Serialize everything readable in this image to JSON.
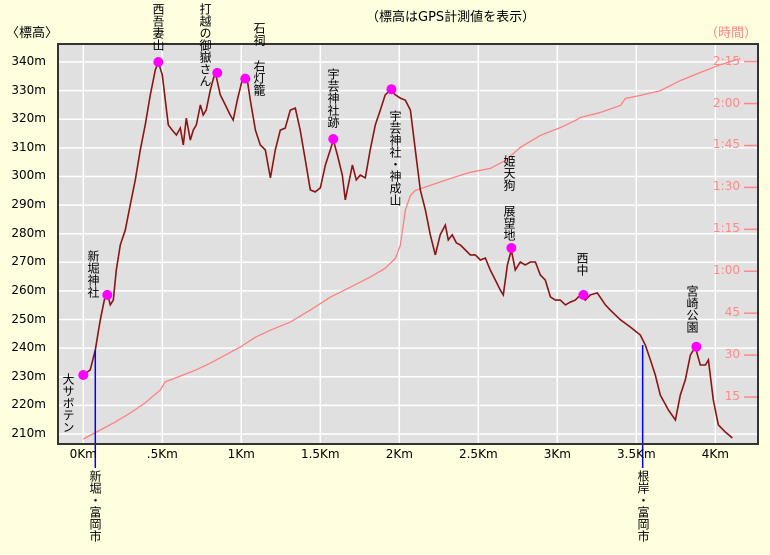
{
  "chart_data": {
    "type": "line",
    "title": "（標高はGPS計測値を表示）",
    "ylabel": "〈標高〉",
    "y2label": "（時間）",
    "xlim": [
      -0.16,
      4.27
    ],
    "ylim": [
      206.5,
      346.3
    ],
    "y2lim_minutes": [
      -1.8,
      141.3
    ],
    "grid": true,
    "x_ticks": [
      "0Km",
      ".5Km",
      "1Km",
      "1.5Km",
      "2Km",
      "2.5Km",
      "3Km",
      "3.5Km",
      "4Km"
    ],
    "x_tick_values": [
      0,
      0.5,
      1,
      1.5,
      2,
      2.5,
      3,
      3.5,
      4
    ],
    "y_ticks": [
      "340m",
      "330m",
      "320m",
      "310m",
      "300m",
      "290m",
      "280m",
      "270m",
      "260m",
      "250m",
      "240m",
      "230m",
      "220m",
      "210m"
    ],
    "y_tick_values": [
      340,
      330,
      320,
      310,
      300,
      290,
      280,
      270,
      260,
      250,
      240,
      230,
      220,
      210
    ],
    "y2_ticks": [
      "2:15",
      "2:00",
      "1:45",
      "1:30",
      "1:15",
      "1:00",
      "45",
      "30",
      "15"
    ],
    "y2_tick_minutes": [
      135,
      120,
      105,
      90,
      75,
      60,
      45,
      30,
      15
    ],
    "colors": {
      "elevation": "#8b1414",
      "time": "#ff8080",
      "landmark": "#ff00ff",
      "boundary": "#0000ff",
      "plot_bg": "#e0e0e0",
      "grid": "#ffffff",
      "page_bg": "#ffffe0"
    },
    "elevation": [
      [
        0,
        230.6
      ],
      [
        0.044,
        232.4
      ],
      [
        0.076,
        239.4
      ],
      [
        0.108,
        249.9
      ],
      [
        0.133,
        256.8
      ],
      [
        0.152,
        259.3
      ],
      [
        0.171,
        255.1
      ],
      [
        0.19,
        256.8
      ],
      [
        0.209,
        267.3
      ],
      [
        0.234,
        276.1
      ],
      [
        0.266,
        281.3
      ],
      [
        0.297,
        290.0
      ],
      [
        0.329,
        298.8
      ],
      [
        0.361,
        309.3
      ],
      [
        0.392,
        318.0
      ],
      [
        0.424,
        328.5
      ],
      [
        0.456,
        337.2
      ],
      [
        0.475,
        340
      ],
      [
        0.5,
        335.5
      ],
      [
        0.519,
        326.7
      ],
      [
        0.538,
        318.0
      ],
      [
        0.563,
        316.2
      ],
      [
        0.589,
        314.5
      ],
      [
        0.614,
        316.9
      ],
      [
        0.633,
        311.0
      ],
      [
        0.652,
        320.4
      ],
      [
        0.677,
        312.7
      ],
      [
        0.696,
        316.2
      ],
      [
        0.715,
        318.0
      ],
      [
        0.741,
        325.0
      ],
      [
        0.759,
        321.5
      ],
      [
        0.778,
        323.2
      ],
      [
        0.804,
        330.2
      ],
      [
        0.835,
        336.5
      ],
      [
        0.867,
        328.5
      ],
      [
        0.899,
        325.0
      ],
      [
        0.93,
        321.5
      ],
      [
        0.949,
        319.7
      ],
      [
        0.975,
        326.7
      ],
      [
        1.006,
        333.7
      ],
      [
        1.038,
        333.7
      ],
      [
        1.057,
        326.7
      ],
      [
        1.089,
        316.2
      ],
      [
        1.12,
        311.0
      ],
      [
        1.152,
        309.3
      ],
      [
        1.184,
        299.5
      ],
      [
        1.215,
        309.3
      ],
      [
        1.247,
        316.2
      ],
      [
        1.278,
        316.9
      ],
      [
        1.31,
        323.2
      ],
      [
        1.342,
        323.9
      ],
      [
        1.373,
        316.2
      ],
      [
        1.405,
        305.8
      ],
      [
        1.437,
        295.3
      ],
      [
        1.468,
        294.6
      ],
      [
        1.5,
        296.0
      ],
      [
        1.532,
        304.0
      ],
      [
        1.563,
        309.3
      ],
      [
        1.582,
        312.7
      ],
      [
        1.608,
        307.5
      ],
      [
        1.639,
        300.5
      ],
      [
        1.658,
        291.8
      ],
      [
        1.677,
        297.0
      ],
      [
        1.703,
        304.0
      ],
      [
        1.728,
        298.8
      ],
      [
        1.753,
        300.5
      ],
      [
        1.785,
        299.5
      ],
      [
        1.816,
        309.3
      ],
      [
        1.848,
        318.0
      ],
      [
        1.88,
        323.2
      ],
      [
        1.911,
        328.5
      ],
      [
        1.943,
        330.2
      ],
      [
        1.975,
        328.5
      ],
      [
        2.006,
        327.4
      ],
      [
        2.038,
        326.7
      ],
      [
        2.07,
        323.2
      ],
      [
        2.101,
        309.3
      ],
      [
        2.133,
        295.3
      ],
      [
        2.165,
        288.3
      ],
      [
        2.196,
        279.6
      ],
      [
        2.228,
        272.6
      ],
      [
        2.259,
        279.6
      ],
      [
        2.291,
        283.0
      ],
      [
        2.31,
        277.8
      ],
      [
        2.335,
        279.6
      ],
      [
        2.361,
        276.8
      ],
      [
        2.386,
        276.1
      ],
      [
        2.418,
        274.3
      ],
      [
        2.449,
        272.6
      ],
      [
        2.481,
        272.6
      ],
      [
        2.513,
        270.8
      ],
      [
        2.544,
        271.5
      ],
      [
        2.576,
        267.3
      ],
      [
        2.608,
        263.8
      ],
      [
        2.639,
        260.3
      ],
      [
        2.658,
        258.6
      ],
      [
        2.684,
        269.1
      ],
      [
        2.709,
        274.3
      ],
      [
        2.734,
        267.3
      ],
      [
        2.766,
        270.1
      ],
      [
        2.797,
        269.1
      ],
      [
        2.829,
        270.1
      ],
      [
        2.861,
        270.1
      ],
      [
        2.892,
        265.6
      ],
      [
        2.924,
        263.8
      ],
      [
        2.956,
        257.9
      ],
      [
        2.987,
        256.8
      ],
      [
        3.019,
        256.8
      ],
      [
        3.051,
        255.1
      ],
      [
        3.082,
        256.1
      ],
      [
        3.114,
        256.8
      ],
      [
        3.146,
        258.6
      ],
      [
        3.177,
        256.8
      ],
      [
        3.209,
        258.6
      ],
      [
        3.253,
        259.3
      ],
      [
        3.304,
        255.1
      ],
      [
        3.335,
        253.3
      ],
      [
        3.399,
        249.9
      ],
      [
        3.462,
        247.4
      ],
      [
        3.525,
        244.6
      ],
      [
        3.557,
        241.1
      ],
      [
        3.589,
        235.9
      ],
      [
        3.62,
        230.6
      ],
      [
        3.652,
        223.6
      ],
      [
        3.703,
        218.4
      ],
      [
        3.747,
        214.9
      ],
      [
        3.778,
        223.6
      ],
      [
        3.81,
        228.9
      ],
      [
        3.842,
        237.6
      ],
      [
        3.873,
        240.4
      ],
      [
        3.905,
        234.1
      ],
      [
        3.937,
        234.1
      ],
      [
        3.956,
        235.9
      ],
      [
        3.987,
        221.9
      ],
      [
        4.019,
        213.2
      ],
      [
        4.063,
        210.7
      ],
      [
        4.108,
        208.6
      ]
    ],
    "time_minutes": [
      [
        0,
        0
      ],
      [
        0.108,
        3.2
      ],
      [
        0.203,
        6.1
      ],
      [
        0.297,
        9.3
      ],
      [
        0.392,
        12.9
      ],
      [
        0.487,
        17.5
      ],
      [
        0.519,
        20.4
      ],
      [
        0.582,
        21.8
      ],
      [
        0.646,
        23.2
      ],
      [
        0.709,
        24.6
      ],
      [
        0.804,
        27.1
      ],
      [
        0.899,
        30
      ],
      [
        0.994,
        32.9
      ],
      [
        1.089,
        36.4
      ],
      [
        1.184,
        38.9
      ],
      [
        1.31,
        41.8
      ],
      [
        1.437,
        46.1
      ],
      [
        1.563,
        50.7
      ],
      [
        1.69,
        54.3
      ],
      [
        1.816,
        57.9
      ],
      [
        1.911,
        61.1
      ],
      [
        1.975,
        64.6
      ],
      [
        2.006,
        69.3
      ],
      [
        2.038,
        81.8
      ],
      [
        2.07,
        87.1
      ],
      [
        2.101,
        88.9
      ],
      [
        2.196,
        90.7
      ],
      [
        2.323,
        93.2
      ],
      [
        2.449,
        95.4
      ],
      [
        2.576,
        96.8
      ],
      [
        2.671,
        99.6
      ],
      [
        2.766,
        104.3
      ],
      [
        2.892,
        108.6
      ],
      [
        3.019,
        111.4
      ],
      [
        3.114,
        113.9
      ],
      [
        3.146,
        115
      ],
      [
        3.272,
        116.8
      ],
      [
        3.399,
        119.3
      ],
      [
        3.43,
        121.8
      ],
      [
        3.525,
        122.9
      ],
      [
        3.652,
        124.6
      ],
      [
        3.778,
        128.2
      ],
      [
        3.905,
        131.1
      ],
      [
        4.032,
        133.9
      ],
      [
        4.158,
        136.1
      ]
    ],
    "landmarks": [
      {
        "name": "大サボテン",
        "km": 0,
        "elev": 230.6
      },
      {
        "name": "新堀神社",
        "km": 0.152,
        "elev": 258.6
      },
      {
        "name": "西吾妻山",
        "km": 0.475,
        "elev": 340
      },
      {
        "name": "打越の御嶽さん",
        "km": 0.848,
        "elev": 336.2
      },
      {
        "name": "石祠 右灯籠",
        "km": 1.025,
        "elev": 334.2
      },
      {
        "name": "宇芸神社跡",
        "km": 1.582,
        "elev": 313.1
      },
      {
        "name": "宇芸神社・神成山",
        "km": 1.95,
        "elev": 330.5
      },
      {
        "name": "姫天狗 展望地",
        "km": 2.709,
        "elev": 275
      },
      {
        "name": "西中",
        "km": 3.165,
        "elev": 258.6
      },
      {
        "name": "宮崎公園",
        "km": 3.88,
        "elev": 240.5
      }
    ],
    "boundaries": [
      {
        "name": "新堀・富岡市",
        "km": 0.076
      },
      {
        "name": "根岸・富岡市",
        "km": 3.54
      }
    ]
  }
}
